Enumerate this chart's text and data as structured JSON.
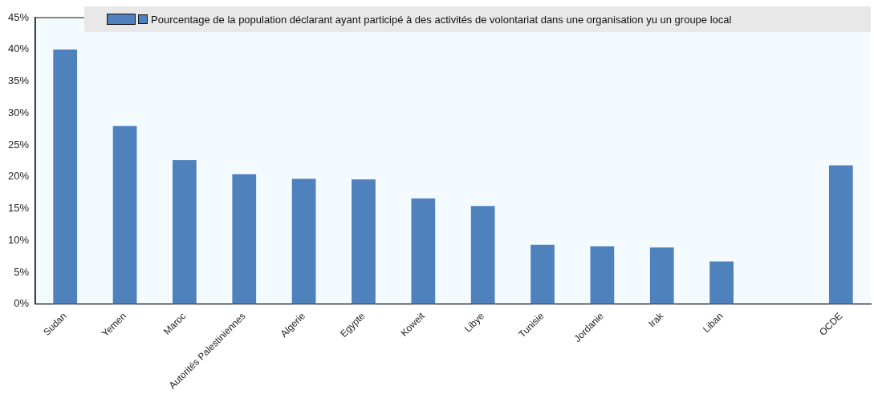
{
  "chart_data": {
    "type": "bar",
    "categories": [
      "Sudan",
      "Yemen",
      "Maroc",
      "Autorités Palestiniennes",
      "Algerie",
      "Egypte",
      "Koweit",
      "Libye",
      "Tunisie",
      "Jordanie",
      "Irak",
      "Liban",
      null,
      "OCDE"
    ],
    "series": [
      {
        "name": "Pourcentage de la population déclarant ayant participé à des activités de volontariat dans une organisation yu un groupe local",
        "color": "#4f81bd",
        "values": [
          40,
          28,
          22.6,
          20.4,
          19.7,
          19.6,
          16.6,
          15.4,
          9.3,
          9.1,
          8.9,
          6.7,
          null,
          21.8
        ]
      }
    ],
    "ylim": [
      0,
      45
    ],
    "yticks": [
      {
        "value": 0,
        "label": "0%"
      },
      {
        "value": 5,
        "label": "5%"
      },
      {
        "value": 10,
        "label": "10%"
      },
      {
        "value": 15,
        "label": "15%"
      },
      {
        "value": 20,
        "label": "20%"
      },
      {
        "value": 25,
        "label": "25%"
      },
      {
        "value": 30,
        "label": "30%"
      },
      {
        "value": 35,
        "label": "35%"
      },
      {
        "value": 40,
        "label": "40%"
      },
      {
        "value": 45,
        "label": "45%"
      }
    ],
    "grid": false,
    "legend": "top"
  }
}
